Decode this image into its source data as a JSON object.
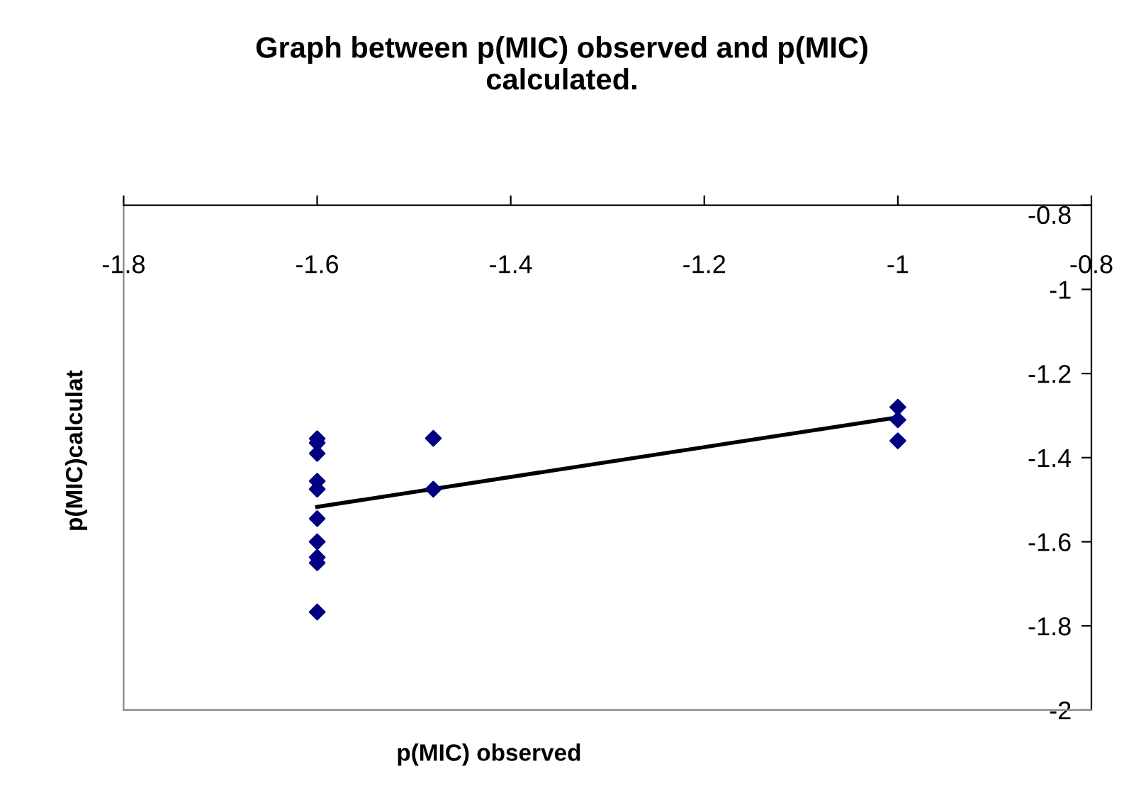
{
  "chart_data": {
    "type": "scatter",
    "title": "Graph between p(MIC) observed and p(MIC)\ncalculated.",
    "xlabel": "p(MIC) observed",
    "ylabel": "p(MIC)calculat",
    "series": [
      {
        "color": "#000080",
        "marker": "diamond",
        "x": [
          -1.6,
          -1.6,
          -1.6,
          -1.6,
          -1.6,
          -1.6,
          -1.6,
          -1.6,
          -1.6,
          -1.6,
          -1.48,
          -1.48,
          -1.0,
          -1.0,
          -1.0
        ],
        "values": [
          -1.355,
          -1.365,
          -1.39,
          -1.456,
          -1.475,
          -1.545,
          -1.6,
          -1.637,
          -1.65,
          -1.767,
          -1.354,
          -1.475,
          -1.28,
          -1.31,
          -1.36
        ]
      },
      {
        "type": "line",
        "color": "#000000",
        "line_style": "solid",
        "marker": "none",
        "x": [
          -1.6,
          -1.0
        ],
        "values": [
          -1.517,
          -1.304
        ]
      }
    ],
    "xlim": [
      -1.8,
      -0.8
    ],
    "xticks": [
      -1.8,
      -1.6,
      -1.4,
      -1.2,
      -1,
      -0.8
    ],
    "ylim": [
      -2,
      -0.8
    ],
    "yticks": [
      -2,
      -1.8,
      -1.6,
      -1.4,
      -1.2,
      -1,
      -0.8
    ],
    "grid": false,
    "legend": false
  }
}
